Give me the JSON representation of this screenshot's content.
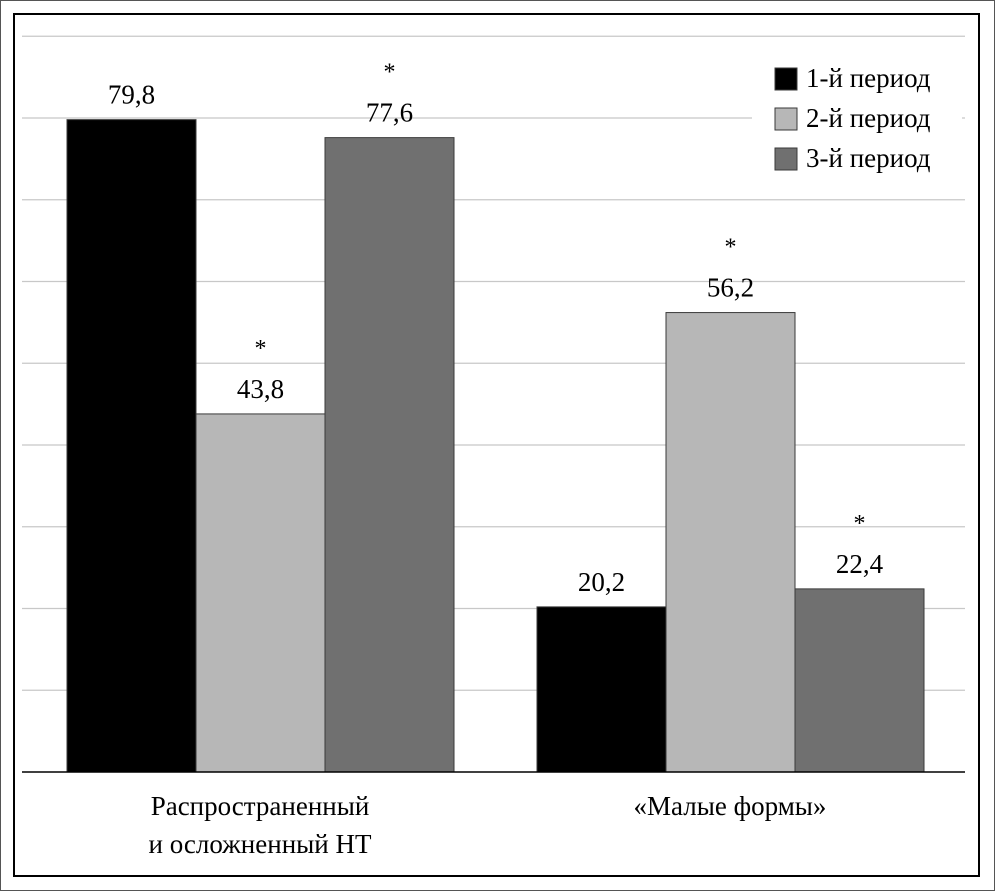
{
  "chart_data": {
    "type": "bar",
    "categories": [
      "Распространенный\nи осложненный НТ",
      "«Малые формы»"
    ],
    "series": [
      {
        "name": "1-й период",
        "values": [
          79.8,
          20.2
        ],
        "labels": [
          "79,8",
          "20,2"
        ],
        "marks": [
          "",
          ""
        ],
        "color": "#000000"
      },
      {
        "name": "2-й период",
        "values": [
          43.8,
          56.2
        ],
        "labels": [
          "43,8",
          "56,2"
        ],
        "marks": [
          "*",
          "*"
        ],
        "color": "#b7b7b7"
      },
      {
        "name": "3-й период",
        "values": [
          77.6,
          22.4
        ],
        "labels": [
          "77,6",
          "22,4"
        ],
        "marks": [
          "*",
          "*"
        ],
        "color": "#707070"
      }
    ],
    "ylim": [
      0,
      90
    ],
    "grid_step": 10,
    "grid": true,
    "legend_position": "top-right",
    "xlabel": "",
    "ylabel": "",
    "title": ""
  }
}
